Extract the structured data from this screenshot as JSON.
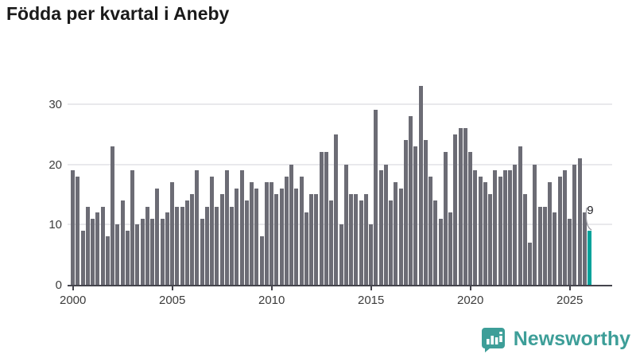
{
  "title": "Födda per kvartal i Aneby",
  "annotation": {
    "last_value_label": "9"
  },
  "logo": {
    "text": "Newsworthy",
    "icon": "newsworthy-speech-bubble-bar-chart"
  },
  "colors": {
    "bar": "#6c6c75",
    "highlight": "#00a29b",
    "grid": "#e9e9ec",
    "axis": "#44444c",
    "axis_text": "#3c3c3c",
    "title_text": "#1a1a1a",
    "annotation_text": "#26262b",
    "logo_teal": "#3d9e98",
    "background": "#ffffff"
  },
  "chart_data": {
    "type": "bar",
    "title": "Födda per kvartal i Aneby",
    "x_start": "2000-Q1",
    "x_end": "2026-Q1",
    "period": "quarterly",
    "values": [
      19,
      18,
      9,
      13,
      11,
      12,
      13,
      8,
      23,
      10,
      14,
      9,
      19,
      10,
      11,
      13,
      11,
      16,
      11,
      12,
      17,
      13,
      13,
      14,
      15,
      19,
      11,
      13,
      18,
      13,
      15,
      19,
      13,
      16,
      19,
      14,
      17,
      16,
      8,
      17,
      17,
      15,
      16,
      18,
      20,
      16,
      18,
      12,
      15,
      15,
      22,
      22,
      14,
      25,
      10,
      20,
      15,
      15,
      14,
      15,
      10,
      29,
      19,
      20,
      14,
      17,
      16,
      24,
      28,
      23,
      33,
      24,
      18,
      14,
      11,
      22,
      12,
      25,
      26,
      26,
      22,
      19,
      18,
      17,
      15,
      19,
      18,
      19,
      19,
      20,
      23,
      15,
      7,
      20,
      13,
      13,
      17,
      12,
      18,
      19,
      11,
      20,
      21,
      12,
      9
    ],
    "highlight_last": true,
    "last_value_label": "9",
    "y_ticks": [
      0,
      10,
      20,
      30
    ],
    "x_ticks": [
      2000,
      2005,
      2010,
      2015,
      2020,
      2025
    ],
    "ylim": [
      0,
      34.5
    ],
    "grid": true,
    "legend": false,
    "xlabel": "",
    "ylabel": ""
  }
}
